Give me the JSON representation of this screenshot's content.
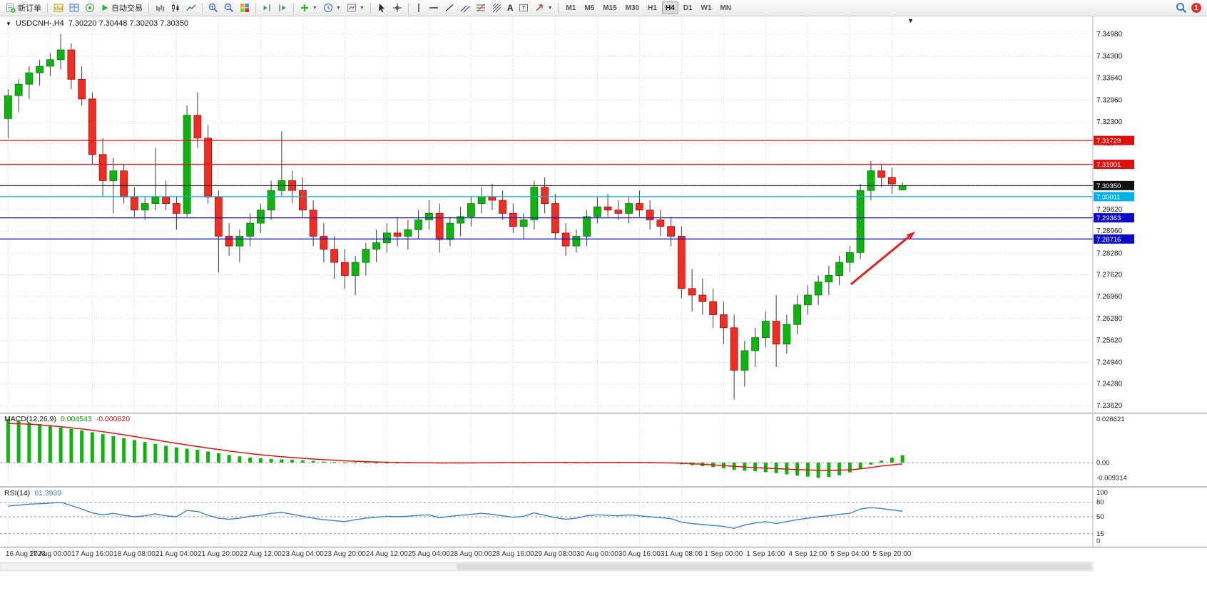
{
  "toolbar": {
    "new_order_label": "新订单",
    "auto_trading_label": "自动交易",
    "text_tool_label": "A",
    "timeframes": [
      "M1",
      "M5",
      "M15",
      "M30",
      "H1",
      "H4",
      "D1",
      "W1",
      "MN"
    ],
    "active_timeframe": "H4",
    "notification_badge": "1"
  },
  "chart": {
    "symbol_period": "USDCNH-,H4",
    "ohlc_line": "7.30220 7.30448 7.30203 7.30350"
  },
  "chart_data": {
    "type": "candlestick",
    "symbol": "USDCNH-",
    "timeframe": "H4",
    "current_bar": {
      "open": 7.3022,
      "high": 7.30448,
      "low": 7.30203,
      "close": 7.3035
    },
    "price_axis_ticks": [
      "7.34980",
      "7.34300",
      "7.33640",
      "7.32960",
      "7.32300",
      "7.31640",
      "7.30960",
      "7.30300",
      "7.29620",
      "7.28960",
      "7.28280",
      "7.27620",
      "7.26960",
      "7.26280",
      "7.25620",
      "7.24940",
      "7.24280",
      "7.23620"
    ],
    "price_range": {
      "max": 7.3498,
      "min": 7.2362
    },
    "time_labels": [
      "16 Aug 2023",
      "17 Aug 00:00",
      "17 Aug 16:00",
      "18 Aug 08:00",
      "21 Aug 04:00",
      "21 Aug 20:00",
      "22 Aug 12:00",
      "23 Aug 04:00",
      "23 Aug 20:00",
      "24 Aug 12:00",
      "25 Aug 04:00",
      "28 Aug 00:00",
      "28 Aug 16:00",
      "29 Aug 08:00",
      "30 Aug 00:00",
      "30 Aug 16:00",
      "31 Aug 08:00",
      "1 Sep 00:00",
      "1 Sep 16:00",
      "4 Sep 12:00",
      "5 Sep 04:00",
      "5 Sep 20:00"
    ],
    "candles": [
      [
        7.324,
        7.333,
        7.318,
        7.331
      ],
      [
        7.331,
        7.336,
        7.326,
        7.3345
      ],
      [
        7.3345,
        7.34,
        7.33,
        7.338
      ],
      [
        7.338,
        7.342,
        7.334,
        7.34
      ],
      [
        7.34,
        7.344,
        7.337,
        7.342
      ],
      [
        7.342,
        7.3498,
        7.339,
        7.345
      ],
      [
        7.345,
        7.347,
        7.333,
        7.336
      ],
      [
        7.336,
        7.34,
        7.328,
        7.33
      ],
      [
        7.33,
        7.332,
        7.31,
        7.313
      ],
      [
        7.313,
        7.318,
        7.3,
        7.305
      ],
      [
        7.305,
        7.312,
        7.295,
        7.308
      ],
      [
        7.308,
        7.31,
        7.298,
        7.3
      ],
      [
        7.3,
        7.303,
        7.294,
        7.296
      ],
      [
        7.296,
        7.3,
        7.293,
        7.298
      ],
      [
        7.298,
        7.315,
        7.296,
        7.3
      ],
      [
        7.3,
        7.305,
        7.296,
        7.298
      ],
      [
        7.298,
        7.3,
        7.29,
        7.295
      ],
      [
        7.295,
        7.328,
        7.294,
        7.325
      ],
      [
        7.325,
        7.332,
        7.315,
        7.318
      ],
      [
        7.318,
        7.322,
        7.298,
        7.3
      ],
      [
        7.3,
        7.302,
        7.277,
        7.288
      ],
      [
        7.288,
        7.292,
        7.282,
        7.285
      ],
      [
        7.285,
        7.29,
        7.28,
        7.288
      ],
      [
        7.288,
        7.295,
        7.285,
        7.292
      ],
      [
        7.292,
        7.298,
        7.289,
        7.296
      ],
      [
        7.296,
        7.305,
        7.293,
        7.302
      ],
      [
        7.302,
        7.32,
        7.3,
        7.305
      ],
      [
        7.305,
        7.308,
        7.298,
        7.302
      ],
      [
        7.302,
        7.306,
        7.294,
        7.296
      ],
      [
        7.296,
        7.299,
        7.285,
        7.288
      ],
      [
        7.288,
        7.292,
        7.28,
        7.284
      ],
      [
        7.284,
        7.288,
        7.275,
        7.28
      ],
      [
        7.28,
        7.284,
        7.272,
        7.276
      ],
      [
        7.276,
        7.282,
        7.27,
        7.28
      ],
      [
        7.28,
        7.286,
        7.276,
        7.284
      ],
      [
        7.284,
        7.29,
        7.28,
        7.286
      ],
      [
        7.286,
        7.292,
        7.283,
        7.289
      ],
      [
        7.289,
        7.294,
        7.285,
        7.288
      ],
      [
        7.288,
        7.293,
        7.284,
        7.29
      ],
      [
        7.29,
        7.296,
        7.287,
        7.293
      ],
      [
        7.293,
        7.299,
        7.29,
        7.295
      ],
      [
        7.295,
        7.298,
        7.283,
        7.287
      ],
      [
        7.287,
        7.294,
        7.285,
        7.292
      ],
      [
        7.292,
        7.297,
        7.288,
        7.294
      ],
      [
        7.294,
        7.3,
        7.291,
        7.298
      ],
      [
        7.298,
        7.303,
        7.295,
        7.3
      ],
      [
        7.3,
        7.304,
        7.296,
        7.299
      ],
      [
        7.299,
        7.302,
        7.293,
        7.295
      ],
      [
        7.295,
        7.298,
        7.289,
        7.291
      ],
      [
        7.291,
        7.295,
        7.287,
        7.293
      ],
      [
        7.293,
        7.305,
        7.29,
        7.303
      ],
      [
        7.303,
        7.306,
        7.295,
        7.298
      ],
      [
        7.298,
        7.301,
        7.287,
        7.289
      ],
      [
        7.289,
        7.292,
        7.282,
        7.285
      ],
      [
        7.285,
        7.29,
        7.283,
        7.288
      ],
      [
        7.288,
        7.296,
        7.285,
        7.294
      ],
      [
        7.294,
        7.3,
        7.292,
        7.297
      ],
      [
        7.297,
        7.301,
        7.294,
        7.296
      ],
      [
        7.296,
        7.299,
        7.293,
        7.295
      ],
      [
        7.295,
        7.3,
        7.292,
        7.298
      ],
      [
        7.298,
        7.302,
        7.294,
        7.296
      ],
      [
        7.296,
        7.299,
        7.29,
        7.293
      ],
      [
        7.293,
        7.296,
        7.288,
        7.291
      ],
      [
        7.291,
        7.294,
        7.285,
        7.288
      ],
      [
        7.288,
        7.291,
        7.269,
        7.272
      ],
      [
        7.272,
        7.278,
        7.265,
        7.27
      ],
      [
        7.27,
        7.275,
        7.264,
        7.268
      ],
      [
        7.268,
        7.272,
        7.26,
        7.264
      ],
      [
        7.264,
        7.268,
        7.255,
        7.26
      ],
      [
        7.26,
        7.264,
        7.238,
        7.247
      ],
      [
        7.247,
        7.256,
        7.242,
        7.253
      ],
      [
        7.253,
        7.26,
        7.248,
        7.257
      ],
      [
        7.257,
        7.265,
        7.254,
        7.262
      ],
      [
        7.262,
        7.27,
        7.248,
        7.255
      ],
      [
        7.255,
        7.264,
        7.252,
        7.261
      ],
      [
        7.261,
        7.27,
        7.258,
        7.267
      ],
      [
        7.267,
        7.273,
        7.264,
        7.27
      ],
      [
        7.27,
        7.276,
        7.267,
        7.274
      ],
      [
        7.274,
        7.279,
        7.27,
        7.276
      ],
      [
        7.276,
        7.282,
        7.273,
        7.28
      ],
      [
        7.28,
        7.285,
        7.277,
        7.283
      ],
      [
        7.283,
        7.304,
        7.281,
        7.302
      ],
      [
        7.302,
        7.311,
        7.299,
        7.308
      ],
      [
        7.308,
        7.31,
        7.303,
        7.306
      ],
      [
        7.306,
        7.309,
        7.301,
        7.304
      ],
      [
        7.3022,
        7.30448,
        7.30203,
        7.3035
      ]
    ],
    "horizontal_lines": [
      {
        "price": 7.31729,
        "label": "7.31729",
        "color": "#dd1111",
        "kind": "resistance"
      },
      {
        "price": 7.31001,
        "label": "7.31001",
        "color": "#dd1111",
        "kind": "resistance"
      },
      {
        "price": 7.3035,
        "label": "7.30350",
        "color": "#111111",
        "kind": "current-price"
      },
      {
        "price": 7.30011,
        "label": "7.30011",
        "color": "#00b0e8",
        "kind": "level"
      },
      {
        "price": 7.29363,
        "label": "7.29363",
        "color": "#0a0ac8",
        "kind": "support"
      },
      {
        "price": 7.28716,
        "label": "7.28716",
        "color": "#0a0ac8",
        "kind": "support"
      }
    ],
    "arrow_annotation": {
      "from_bar": 80.6,
      "from_price": 7.2733,
      "to_bar": 86.7,
      "to_price": 7.2894,
      "color": "#e02222"
    },
    "colors": {
      "up": "#12b212",
      "down": "#ee2e24",
      "up_stroke": "#067806",
      "down_stroke": "#9e1410",
      "wick": "#3a3a3a",
      "grid": "#d6d6d6",
      "rsi_line": "#3f7fc1",
      "macd_signal": "#e01111",
      "macd_hist": "#12b212"
    },
    "macd": {
      "label": "MACD(12,26,9)",
      "value_main": "0.004543",
      "value_signal": "-0.000820",
      "axis_ticks": [
        "0.026621",
        "0.00",
        "-0.009314"
      ],
      "max": 0.026621,
      "min": -0.009314,
      "histogram": [
        0.026621,
        0.0256,
        0.0246,
        0.0236,
        0.0225,
        0.0215,
        0.0206,
        0.0196,
        0.0186,
        0.0174,
        0.0162,
        0.015,
        0.0138,
        0.0126,
        0.0114,
        0.0103,
        0.0093,
        0.0085,
        0.0078,
        0.0068,
        0.0057,
        0.0047,
        0.0038,
        0.0031,
        0.0026,
        0.0022,
        0.002,
        0.0018,
        0.0014,
        0.001,
        0.0006,
        0.0003,
        0.0,
        -0.0002,
        -0.0004,
        -0.0005,
        -0.0005,
        -0.0004,
        -0.0003,
        -0.0002,
        -0.0001,
        -0.0003,
        -0.0004,
        -0.0003,
        -0.0001,
        0.0001,
        0.0002,
        0.0001,
        -0.0001,
        0.0,
        0.0003,
        0.0004,
        0.0002,
        -0.0001,
        -0.0002,
        0.0,
        0.0002,
        0.0002,
        0.0001,
        0.0002,
        0.0001,
        -0.0001,
        -0.0003,
        -0.0005,
        -0.001,
        -0.0016,
        -0.0022,
        -0.0028,
        -0.0035,
        -0.0045,
        -0.005,
        -0.0053,
        -0.0058,
        -0.0065,
        -0.0072,
        -0.008,
        -0.0086,
        -0.009314,
        -0.0088,
        -0.0078,
        -0.006,
        -0.0038,
        -0.0012,
        0.0012,
        0.003,
        0.004543
      ],
      "signal": [
        0.024,
        0.0238,
        0.0235,
        0.0231,
        0.0226,
        0.022,
        0.0213,
        0.0206,
        0.0198,
        0.0189,
        0.018,
        0.017,
        0.016,
        0.0149,
        0.0139,
        0.0128,
        0.0118,
        0.0108,
        0.0098,
        0.0089,
        0.008,
        0.0071,
        0.0063,
        0.0055,
        0.0048,
        0.0042,
        0.0036,
        0.0031,
        0.0026,
        0.0022,
        0.0018,
        0.0014,
        0.0011,
        0.0008,
        0.0006,
        0.0004,
        0.0002,
        0.0001,
        0.0,
        -0.0001,
        -0.0001,
        -0.0002,
        -0.0002,
        -0.0002,
        -0.0002,
        -0.0001,
        -0.0001,
        0.0,
        0.0,
        0.0,
        0.0001,
        0.0001,
        0.0001,
        0.0001,
        0.0,
        0.0,
        0.0001,
        0.0001,
        0.0001,
        0.0001,
        0.0001,
        0.0,
        -0.0001,
        -0.0002,
        -0.0004,
        -0.0007,
        -0.001,
        -0.0014,
        -0.0018,
        -0.0023,
        -0.0027,
        -0.0031,
        -0.0034,
        -0.0037,
        -0.004,
        -0.0043,
        -0.0045,
        -0.0047,
        -0.0048,
        -0.0047,
        -0.0044,
        -0.0038,
        -0.003,
        -0.0021,
        -0.0014,
        -0.00082
      ]
    },
    "rsi": {
      "label": "RSI(14)",
      "value": "61.3939",
      "axis_ticks": [
        "100",
        "80",
        "50",
        "15",
        "0"
      ],
      "levels": [
        80,
        50,
        15
      ],
      "values": [
        72,
        74,
        76,
        77,
        78,
        80,
        73,
        66,
        58,
        54,
        57,
        53,
        50,
        52,
        56,
        52,
        50,
        63,
        61,
        53,
        47,
        45,
        47,
        51,
        53,
        57,
        59,
        55,
        51,
        47,
        44,
        42,
        40,
        44,
        47,
        49,
        51,
        50,
        51,
        53,
        54,
        48,
        51,
        53,
        55,
        57,
        55,
        52,
        49,
        51,
        58,
        53,
        48,
        45,
        47,
        52,
        54,
        53,
        52,
        54,
        52,
        50,
        48,
        46,
        39,
        36,
        34,
        32,
        30,
        26,
        33,
        37,
        40,
        36,
        40,
        44,
        47,
        50,
        52,
        55,
        57,
        66,
        69,
        67,
        64,
        61.39
      ]
    }
  }
}
